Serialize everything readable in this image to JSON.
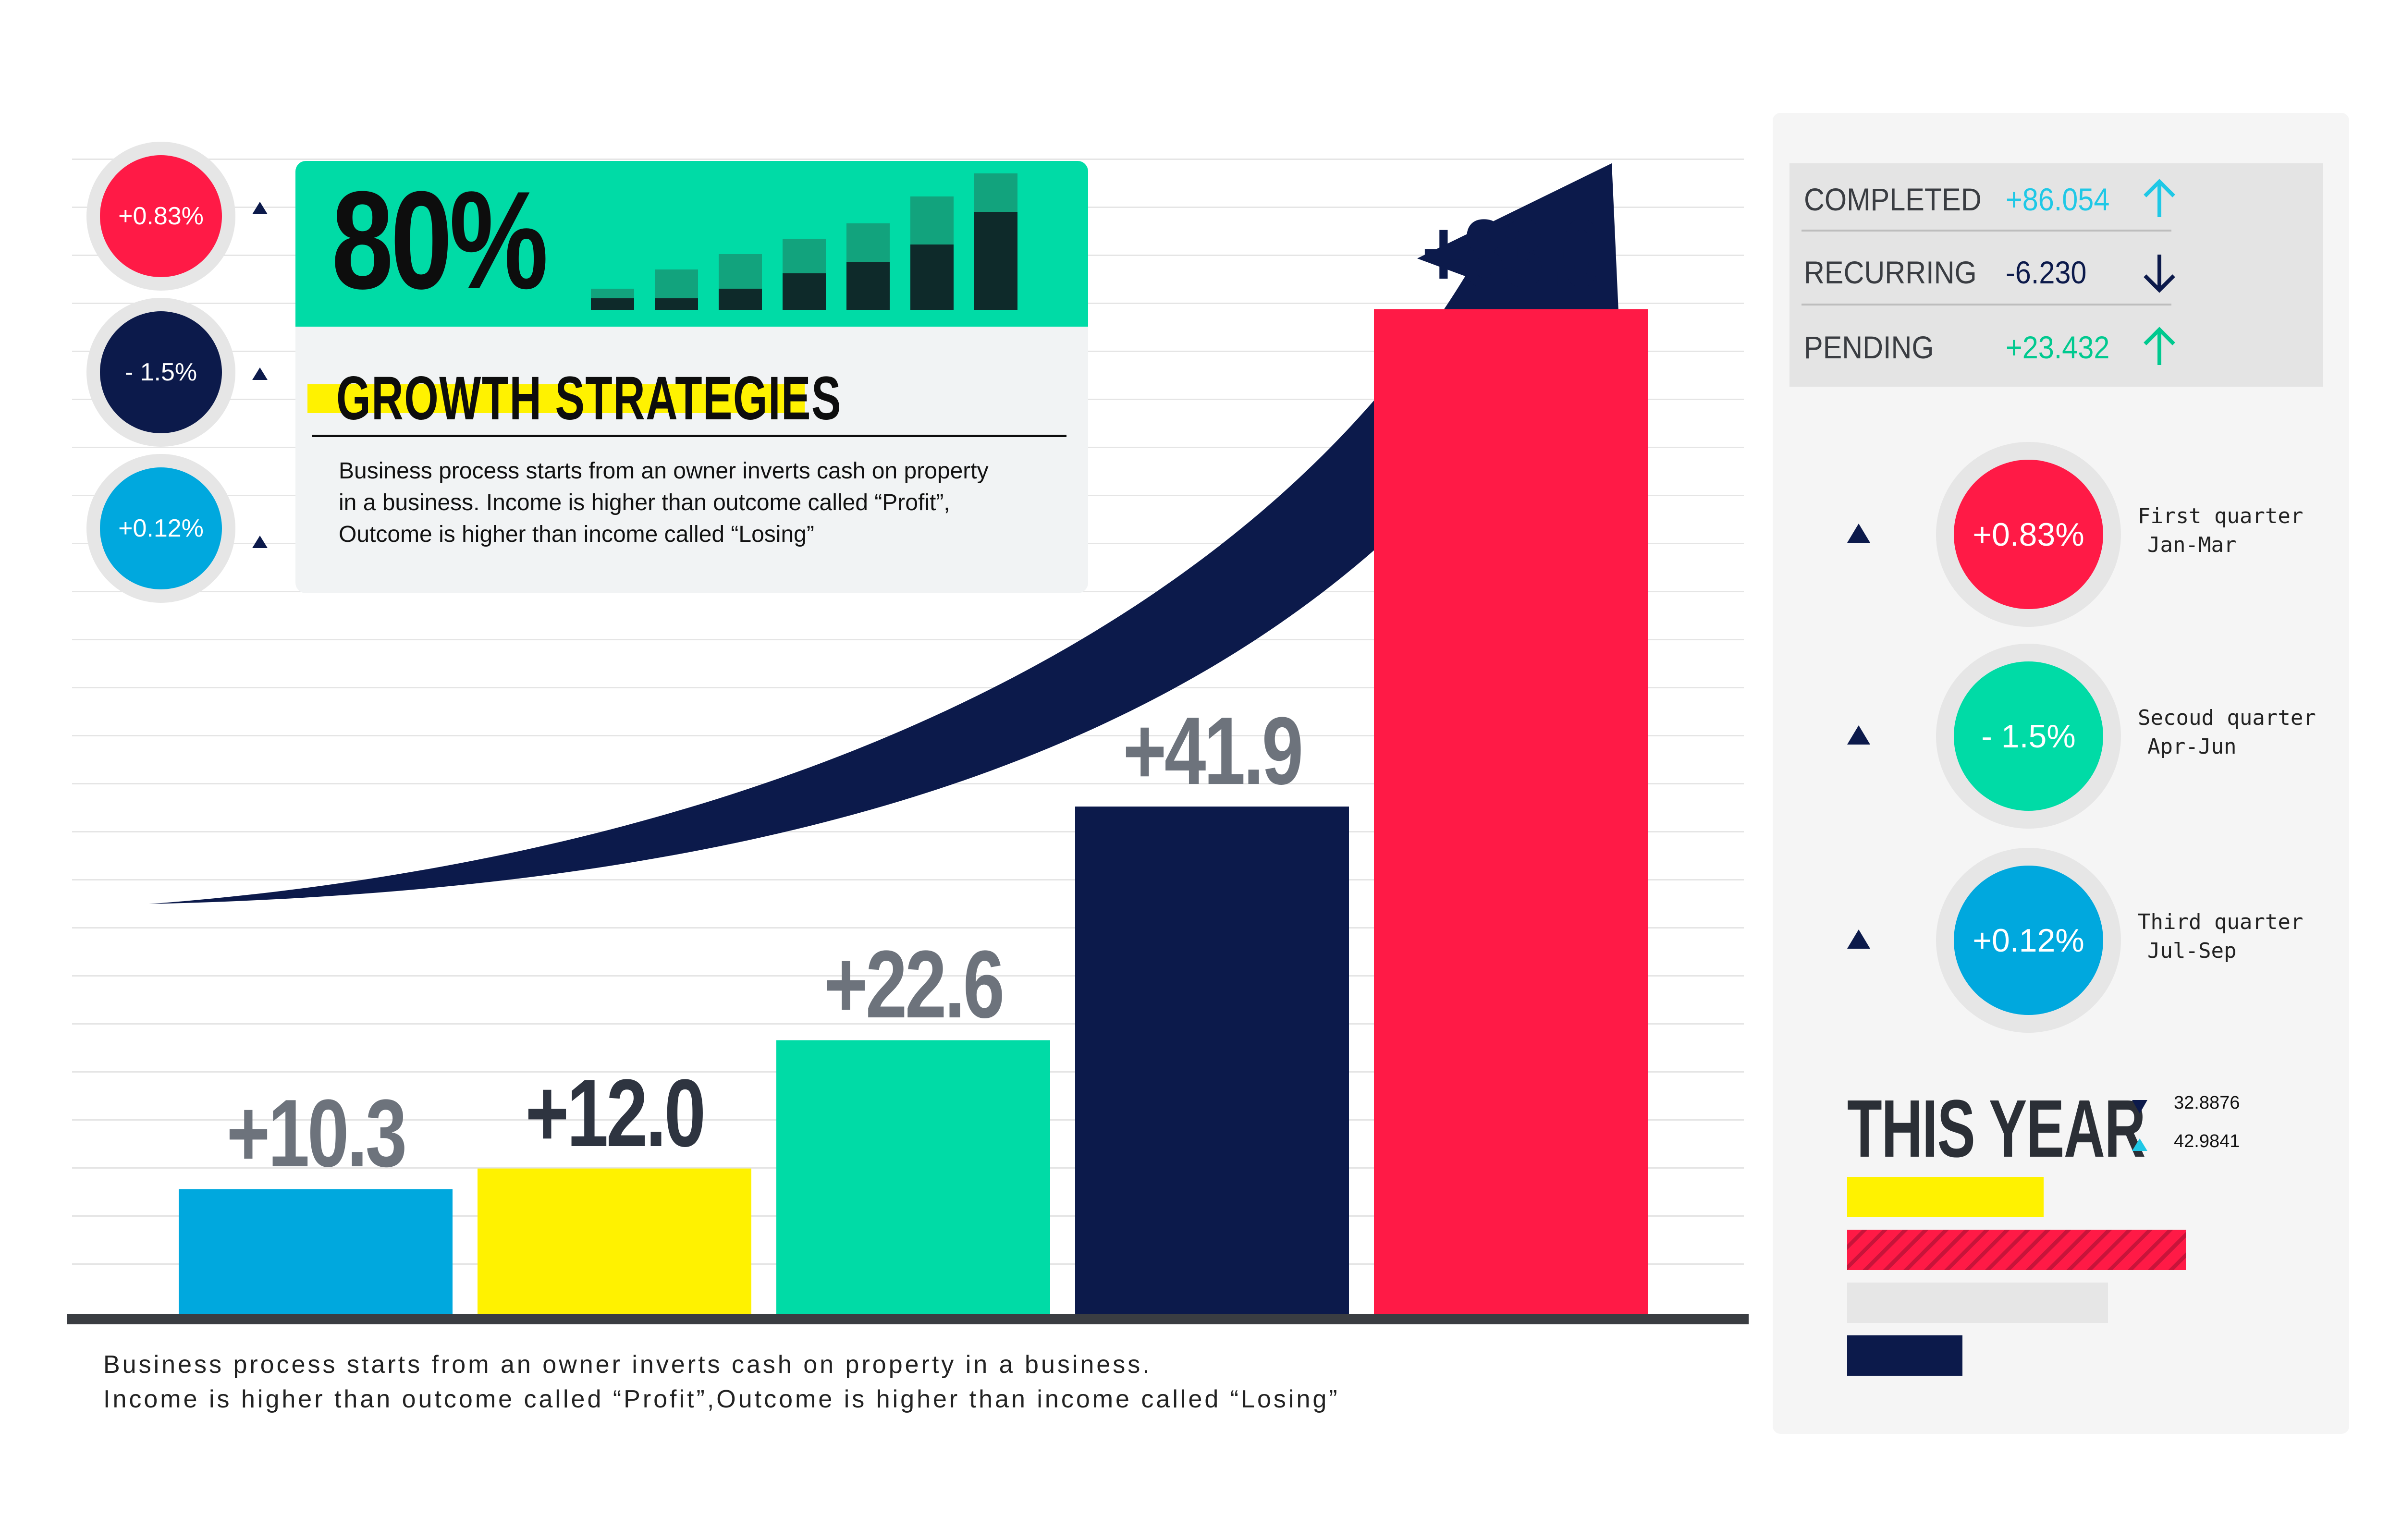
{
  "headline": {
    "percent": "80%",
    "title": "GROWTH STRATEGIES",
    "description_lines": [
      "Business process starts from an owner inverts cash on property",
      "in a business. Income is higher than outcome called “Profit”,",
      "Outcome is higher than income called “Losing”"
    ]
  },
  "left_badges": [
    {
      "label": "+0.83%",
      "color": "#ff1a46"
    },
    {
      "label": "- 1.5%",
      "color": "#0c1a4b"
    },
    {
      "label": "+0.12%",
      "color": "#00a8de"
    }
  ],
  "mini_bars": [
    {
      "total": 0.22,
      "dark": 0.12
    },
    {
      "total": 0.42,
      "dark": 0.12
    },
    {
      "total": 0.58,
      "dark": 0.22
    },
    {
      "total": 0.74,
      "dark": 0.38
    },
    {
      "total": 0.9,
      "dark": 0.5
    },
    {
      "total": 1.18,
      "dark": 0.68
    },
    {
      "total": 1.42,
      "dark": 1.02
    }
  ],
  "chart_data": {
    "type": "bar",
    "categories": [
      "",
      "",
      "",
      "",
      ""
    ],
    "values": [
      10.3,
      12.0,
      22.6,
      41.9,
      83.0
    ],
    "value_labels": [
      "+10.3",
      "+12.0",
      "+22.6",
      "+41.9",
      "+83.0"
    ],
    "colors": [
      "#00a8de",
      "#fff200",
      "#00dba6",
      "#0c1a4b",
      "#ff1a46"
    ],
    "label_colors": [
      "#6d737c",
      "#2e3440",
      "#6d737c",
      "#6d737c",
      "#0c1a4b"
    ],
    "ylim": [
      0,
      100
    ],
    "grid": true,
    "title": "",
    "xlabel": "",
    "ylabel": ""
  },
  "footer_lines": [
    "Business process starts from an owner inverts cash on property in a business.",
    "Income is higher than outcome called “Profit”,Outcome is higher than income called “Losing”"
  ],
  "stats": [
    {
      "label": "COMPLETED",
      "value": "+86.054",
      "value_color": "#1fc8e6",
      "direction": "up",
      "arrow_color": "#1fc8e6"
    },
    {
      "label": "RECURRING",
      "value": "-6.230",
      "value_color": "#0c1a4b",
      "direction": "down",
      "arrow_color": "#0c1a4b"
    },
    {
      "label": "PENDING",
      "value": "+23.432",
      "value_color": "#00c98f",
      "direction": "up",
      "arrow_color": "#00c98f"
    }
  ],
  "quarters": [
    {
      "value": "+0.83%",
      "color": "#ff1a46",
      "name": "First quarter",
      "range": "Jan-Mar"
    },
    {
      "value": "- 1.5%",
      "color": "#00dba6",
      "name": "Secoud quarter",
      "range": "Apr-Jun"
    },
    {
      "value": "+0.12%",
      "color": "#00a8de",
      "name": "Third quarter",
      "range": "Jul-Sep"
    }
  ],
  "this_year": {
    "title": "THIS YEAR",
    "down_value": "32.8876",
    "up_value": "42.9841",
    "bars": [
      {
        "color": "#fff200",
        "value": 0.58,
        "striped": false
      },
      {
        "color": "#ff1a46",
        "value": 1.0,
        "striped": true
      },
      {
        "color": "#e6e6e6",
        "value": 0.77,
        "striped": false
      },
      {
        "color": "#0c1a4b",
        "value": 0.34,
        "striped": false
      }
    ]
  }
}
